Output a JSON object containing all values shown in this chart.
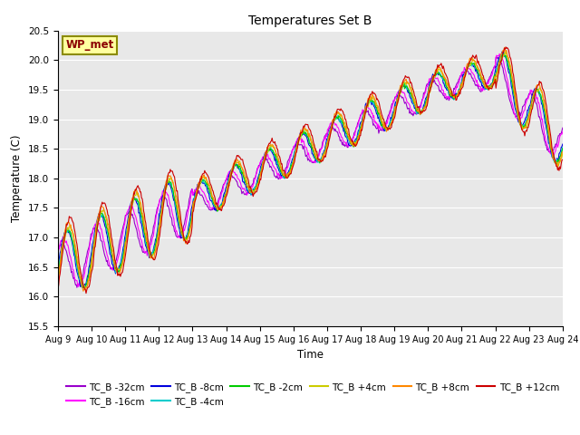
{
  "title": "Temperatures Set B",
  "xlabel": "Time",
  "ylabel": "Temperature (C)",
  "ylim": [
    15.5,
    20.5
  ],
  "annotation": "WP_met",
  "annotation_color": "#8B0000",
  "annotation_bg": "#FFFFA0",
  "annotation_border": "#8B8B00",
  "x_tick_labels": [
    "Aug 9",
    "Aug 10",
    "Aug 11",
    "Aug 12",
    "Aug 13",
    "Aug 14",
    "Aug 15",
    "Aug 16",
    "Aug 17",
    "Aug 18",
    "Aug 19",
    "Aug 20",
    "Aug 21",
    "Aug 22",
    "Aug 23",
    "Aug 24"
  ],
  "series_colors": [
    "#9900CC",
    "#FF00FF",
    "#0000DD",
    "#00CCCC",
    "#00CC00",
    "#CCCC00",
    "#FF8800",
    "#CC0000"
  ],
  "series_labels": [
    "TC_B -32cm",
    "TC_B -16cm",
    "TC_B -8cm",
    "TC_B -4cm",
    "TC_B -2cm",
    "TC_B +4cm",
    "TC_B +8cm",
    "TC_B +12cm"
  ],
  "bg_color": "#E8E8E8",
  "fig_bg": "#FFFFFF",
  "grid_color": "#FFFFFF",
  "n_points": 720,
  "n_days": 15
}
